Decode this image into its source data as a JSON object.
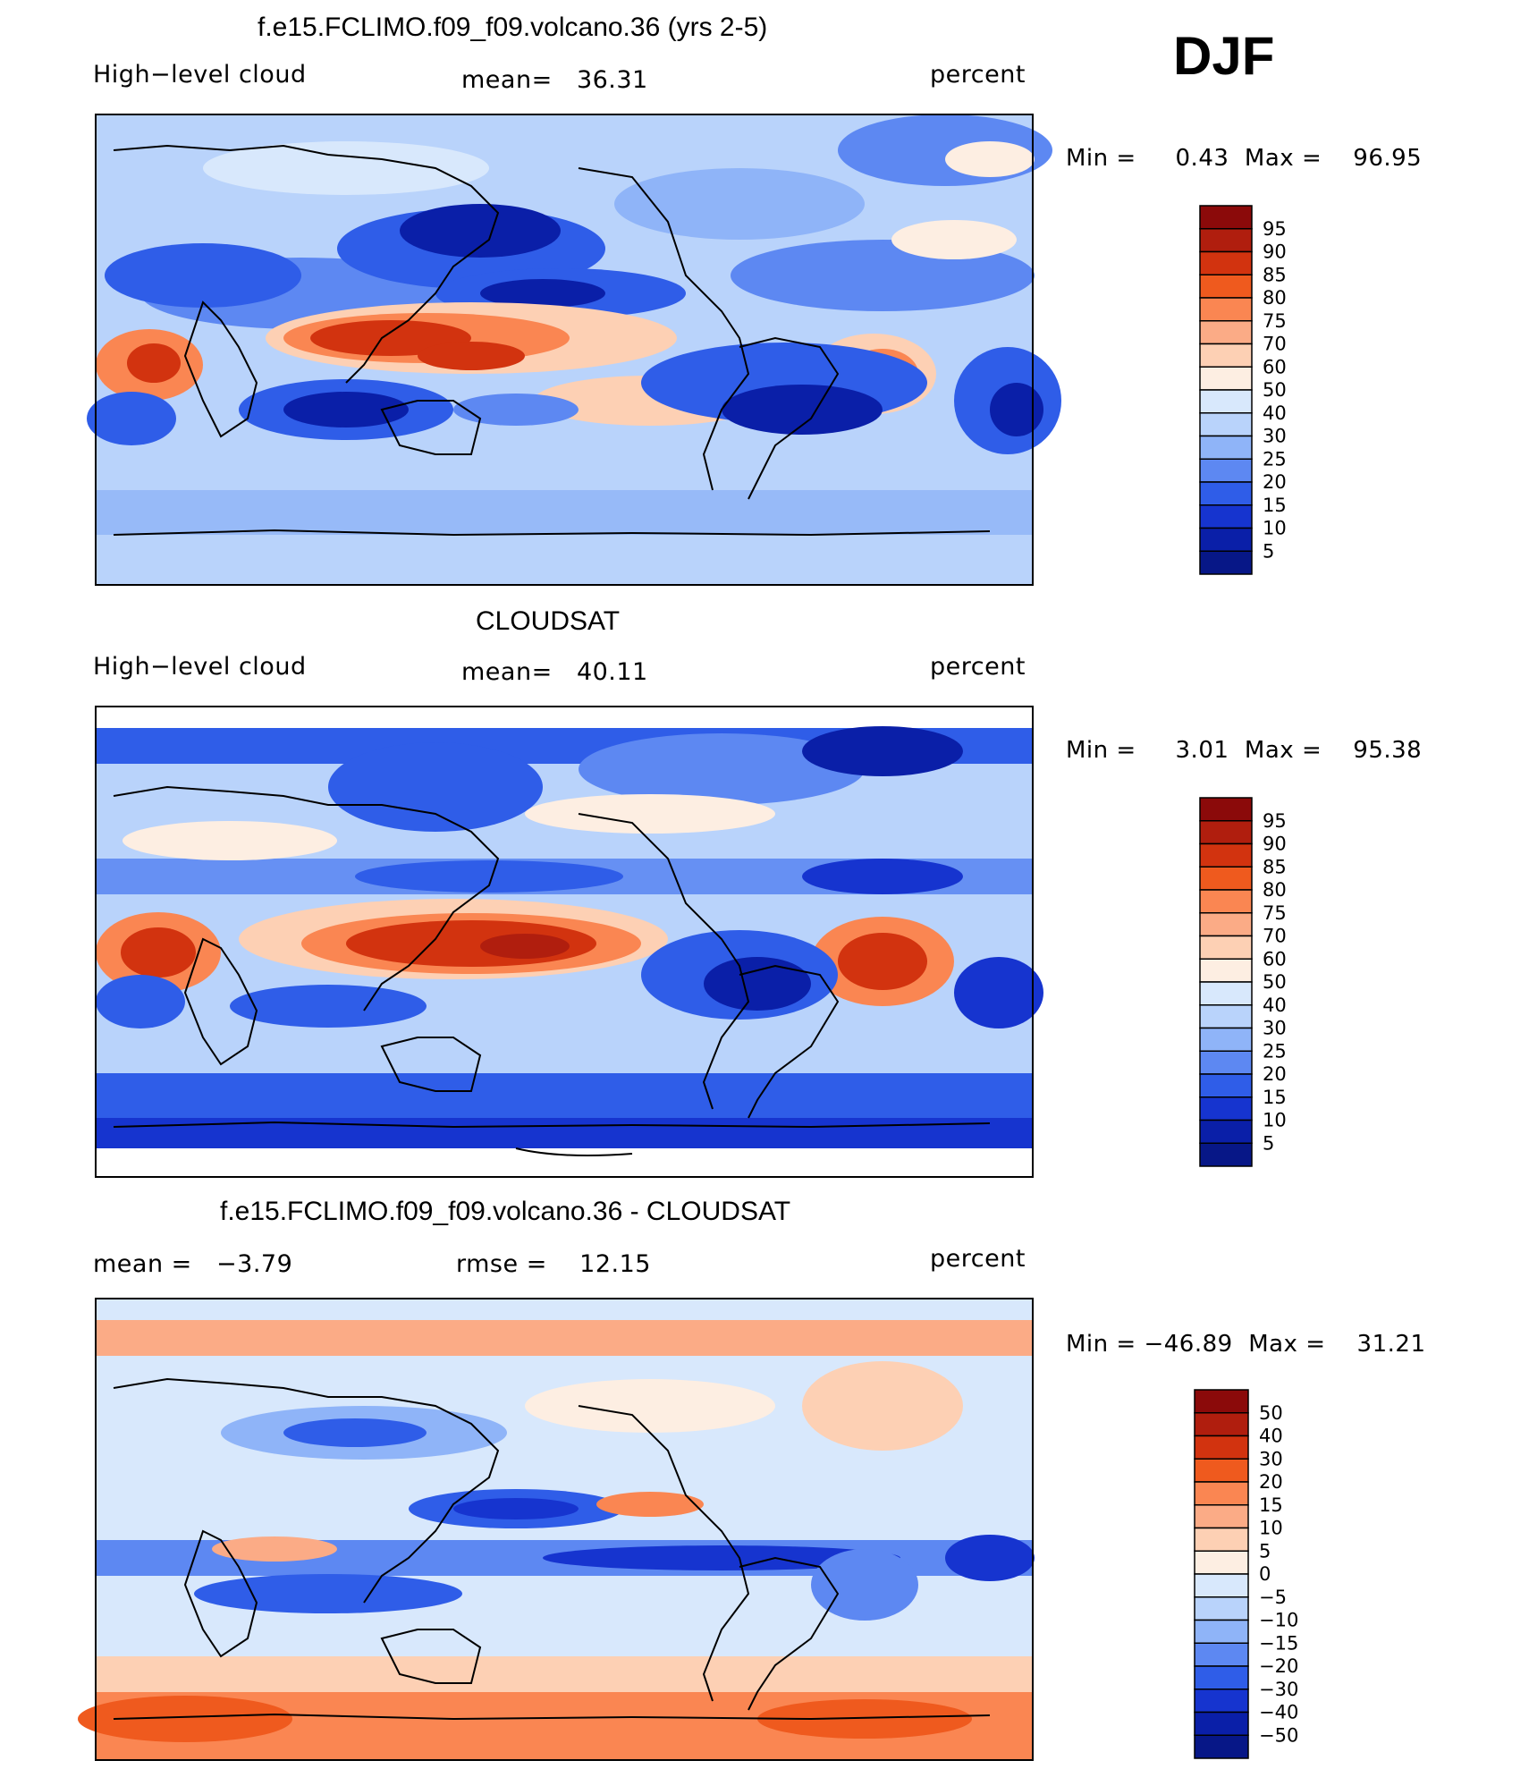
{
  "season": "DJF",
  "panels": [
    {
      "title": "f.e15.FCLIMO.f09_f09.volcano.36 (yrs 2-5)",
      "left": "High−level cloud",
      "center": "mean=   36.31",
      "right": "percent",
      "minmax": "Min =     0.43  Max =    96.95"
    },
    {
      "title": "CLOUDSAT",
      "left": "High−level cloud",
      "center": "mean=   40.11",
      "right": "percent",
      "minmax": "Min =     3.01  Max =    95.38"
    },
    {
      "title": "f.e15.FCLIMO.f09_f09.volcano.36 - CLOUDSAT",
      "left": "mean =   −3.79",
      "center": "rmse =    12.15",
      "right": "percent",
      "minmax": "Min = −46.89  Max =    31.21"
    }
  ],
  "colorbars": {
    "cloud": {
      "labels": [
        "95",
        "90",
        "85",
        "80",
        "75",
        "70",
        "60",
        "50",
        "40",
        "30",
        "25",
        "20",
        "15",
        "10",
        "5"
      ],
      "colors": [
        "#8b0a0a",
        "#b01e0e",
        "#d2330f",
        "#ef5a1e",
        "#fa8652",
        "#fbab86",
        "#fdd0b4",
        "#fdeee2",
        "#d8e8fc",
        "#b9d3fb",
        "#8fb4f8",
        "#5d88f2",
        "#2f5de8",
        "#1634cf",
        "#0a1fa8",
        "#071787"
      ]
    },
    "diff": {
      "labels": [
        "50",
        "40",
        "30",
        "20",
        "15",
        "10",
        "5",
        "0",
        "−5",
        "−10",
        "−15",
        "−20",
        "−30",
        "−40",
        "−50"
      ],
      "colors": [
        "#8b0a0a",
        "#b01e0e",
        "#d2330f",
        "#ef5a1e",
        "#fa8652",
        "#fbab86",
        "#fdd0b4",
        "#fdeee2",
        "#d8e8fc",
        "#b9d3fb",
        "#8fb4f8",
        "#5d88f2",
        "#2f5de8",
        "#1634cf",
        "#0a1fa8",
        "#071787"
      ]
    }
  },
  "chart_data": [
    {
      "type": "heatmap",
      "title": "f.e15.FCLIMO.f09_f09.volcano.36 (yrs 2-5)",
      "variable": "High−level cloud",
      "units": "percent",
      "mean": 36.31,
      "min": 0.43,
      "max": 96.95,
      "season": "DJF",
      "contour_levels": [
        5,
        10,
        15,
        20,
        25,
        30,
        40,
        50,
        60,
        70,
        75,
        80,
        85,
        90,
        95
      ]
    },
    {
      "type": "heatmap",
      "title": "CLOUDSAT",
      "variable": "High−level cloud",
      "units": "percent",
      "mean": 40.11,
      "min": 3.01,
      "max": 95.38,
      "season": "DJF",
      "contour_levels": [
        5,
        10,
        15,
        20,
        25,
        30,
        40,
        50,
        60,
        70,
        75,
        80,
        85,
        90,
        95
      ]
    },
    {
      "type": "heatmap",
      "title": "f.e15.FCLIMO.f09_f09.volcano.36 - CLOUDSAT",
      "units": "percent",
      "mean": -3.79,
      "rmse": 12.15,
      "min": -46.89,
      "max": 31.21,
      "season": "DJF",
      "contour_levels": [
        -50,
        -40,
        -30,
        -20,
        -15,
        -10,
        -5,
        0,
        5,
        10,
        15,
        20,
        30,
        40,
        50
      ]
    }
  ]
}
